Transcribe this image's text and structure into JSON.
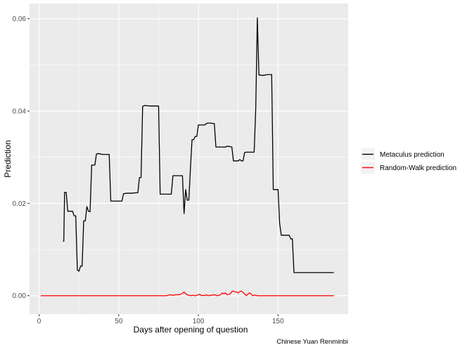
{
  "chart_data": {
    "type": "line",
    "xlabel": "Days after opening of question",
    "ylabel": "Prediction",
    "caption": "Chinese Yuan Renminbi",
    "xlim": [
      -6,
      194
    ],
    "ylim": [
      -0.004,
      0.0633
    ],
    "xticks": [
      0,
      50,
      100,
      150
    ],
    "xtick_labels": [
      "0",
      "50",
      "100",
      "150"
    ],
    "yticks": [
      0.0,
      0.02,
      0.04,
      0.06
    ],
    "ytick_labels": [
      "0.00",
      "0.02",
      "0.04",
      "0.06"
    ],
    "grid": true,
    "legend_position": "right",
    "colors": {
      "panel": "#ebebeb",
      "grid": "#ffffff",
      "metaculus": "#000000",
      "random_walk": "#ff0000"
    },
    "series": [
      {
        "name": "Metaculus prediction",
        "color": "#000000",
        "x": [
          15,
          15.5,
          16,
          17,
          18,
          19,
          20,
          21,
          22,
          23,
          24,
          25,
          26,
          27,
          28,
          29,
          30,
          31,
          32,
          33,
          34,
          35,
          36,
          37,
          40,
          44,
          45,
          50,
          51,
          52,
          53,
          55,
          58,
          61,
          62,
          63,
          64,
          65,
          66,
          70,
          74,
          75,
          76,
          79,
          82,
          83,
          84,
          85,
          86,
          90,
          91,
          92,
          93,
          94,
          95,
          96,
          97,
          98,
          99,
          100,
          102,
          104,
          105,
          106,
          108,
          109,
          110,
          111,
          112,
          114,
          116,
          117,
          118,
          120,
          121,
          122,
          123,
          124,
          125,
          126,
          127,
          128,
          129,
          130,
          132,
          134,
          135,
          136,
          137,
          138,
          139,
          140,
          142,
          143,
          144,
          145,
          146,
          147,
          148,
          149,
          150,
          151,
          152,
          153,
          155,
          156,
          157,
          158,
          159,
          160,
          162,
          168,
          170,
          180,
          185
        ],
        "y": [
          0.0118,
          0.0118,
          0.0224,
          0.0224,
          0.0183,
          0.0183,
          0.0183,
          0.0183,
          0.0173,
          0.0173,
          0.0056,
          0.0053,
          0.0064,
          0.0064,
          0.0162,
          0.0162,
          0.0193,
          0.0183,
          0.0182,
          0.0283,
          0.0283,
          0.0283,
          0.0307,
          0.0308,
          0.0306,
          0.0306,
          0.0205,
          0.0205,
          0.0205,
          0.0205,
          0.0221,
          0.0222,
          0.0222,
          0.0223,
          0.0223,
          0.0256,
          0.0256,
          0.041,
          0.0412,
          0.0411,
          0.0411,
          0.0411,
          0.022,
          0.022,
          0.022,
          0.022,
          0.026,
          0.026,
          0.026,
          0.026,
          0.0178,
          0.023,
          0.0207,
          0.0207,
          0.0275,
          0.0338,
          0.0338,
          0.0345,
          0.0345,
          0.037,
          0.037,
          0.037,
          0.0373,
          0.0374,
          0.0374,
          0.0373,
          0.0373,
          0.0322,
          0.0322,
          0.0322,
          0.0322,
          0.0322,
          0.0324,
          0.0323,
          0.0322,
          0.0292,
          0.0292,
          0.0292,
          0.0292,
          0.0295,
          0.0292,
          0.0292,
          0.031,
          0.0311,
          0.0311,
          0.0311,
          0.0311,
          0.0405,
          0.0602,
          0.0478,
          0.0478,
          0.0477,
          0.0478,
          0.0479,
          0.0479,
          0.0479,
          0.0479,
          0.023,
          0.023,
          0.023,
          0.023,
          0.0157,
          0.0131,
          0.0131,
          0.0131,
          0.0131,
          0.0131,
          0.0123,
          0.0123,
          0.005,
          0.005,
          0.005,
          0.005,
          0.005,
          0.005
        ]
      },
      {
        "name": "Random-Walk prediction",
        "color": "#ff0000",
        "x": [
          1,
          20,
          40,
          60,
          80,
          82,
          84,
          86,
          88,
          90,
          91,
          92,
          93,
          94,
          95,
          96,
          98,
          100,
          101,
          102,
          103,
          104,
          105,
          106,
          108,
          110,
          112,
          114,
          115,
          116,
          117,
          118,
          119,
          120,
          121,
          122,
          123,
          124,
          125,
          126,
          127,
          128,
          129,
          130,
          131,
          132,
          133,
          134,
          135,
          136,
          137,
          140,
          150,
          160,
          170,
          185
        ],
        "y": [
          0.0,
          0.0,
          0.0,
          0.0,
          0.0,
          0.0002,
          0.0001,
          0.0002,
          0.0002,
          0.0005,
          0.0008,
          0.0004,
          0.0002,
          0.0001,
          0.0,
          0.0001,
          0.0,
          0.0002,
          0.0003,
          0.0,
          0.0001,
          0.0,
          0.0002,
          0.0,
          0.0001,
          0.0002,
          0.0,
          0.0002,
          0.0006,
          0.0004,
          0.0006,
          0.0002,
          0.0003,
          0.0004,
          0.0009,
          0.001,
          0.0008,
          0.0008,
          0.0006,
          0.0009,
          0.001,
          0.0007,
          0.0004,
          0.0,
          0.0003,
          0.0006,
          0.0004,
          0.0,
          0.0001,
          0.0001,
          0.0,
          0.0,
          0.0,
          0.0,
          0.0,
          0.0
        ]
      }
    ]
  }
}
